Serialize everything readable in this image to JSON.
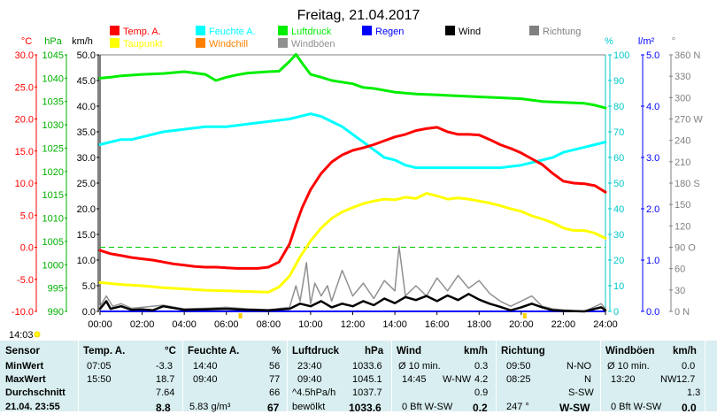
{
  "chart_data": {
    "type": "line",
    "title": "Freitag, 21.04.2017",
    "time_labels": [
      "00:00",
      "02:00",
      "04:00",
      "06:00",
      "08:00",
      "10:00",
      "12:00",
      "14:00",
      "16:00",
      "18:00",
      "20:00",
      "22:00",
      "24:00"
    ],
    "axes": {
      "temp": {
        "unit": "°C",
        "ticks": [
          "30.0",
          "25.0",
          "20.0",
          "15.0",
          "10.0",
          "5.0",
          "0.0",
          "-5.0",
          "-10.0"
        ],
        "range": [
          -10,
          30
        ]
      },
      "pressure": {
        "unit": "hPa",
        "ticks": [
          "1045",
          "1040",
          "1035",
          "1030",
          "1025",
          "1020",
          "1015",
          "1010",
          "1005",
          "1000",
          "995",
          "990"
        ],
        "range": [
          990,
          1045
        ]
      },
      "wind": {
        "unit": "km/h",
        "ticks": [
          "50.0",
          "45.0",
          "40.0",
          "35.0",
          "30.0",
          "25.0",
          "20.0",
          "15.0",
          "10.0",
          "5.0",
          "0.0"
        ],
        "range": [
          0,
          50
        ]
      },
      "humidity": {
        "unit": "%",
        "ticks": [
          "100",
          "90",
          "80",
          "70",
          "60",
          "50",
          "40",
          "30",
          "20",
          "10",
          "0"
        ],
        "range": [
          0,
          100
        ]
      },
      "rain": {
        "unit": "l/m²",
        "ticks": [
          "5.0",
          "4.0",
          "3.0",
          "2.0",
          "1.0",
          "0.0"
        ],
        "range": [
          0,
          5
        ]
      },
      "direction": {
        "unit": "°",
        "ticks": [
          "360 N",
          "330",
          "300",
          "270 W",
          "240",
          "210",
          "180 S",
          "150",
          "120",
          "90 O",
          "60",
          "30",
          "0 N"
        ],
        "range": [
          0,
          360
        ]
      }
    },
    "legend": [
      {
        "name": "Temp. A.",
        "color": "#ff0000"
      },
      {
        "name": "Feuchte A.",
        "color": "#00ffff"
      },
      {
        "name": "Luftdruck",
        "color": "#00ee00"
      },
      {
        "name": "Regen",
        "color": "#0000ff"
      },
      {
        "name": "Wind",
        "color": "#000000"
      },
      {
        "name": "Richtung",
        "color": "#808080"
      },
      {
        "name": "Taupunkt",
        "color": "#ffff00"
      },
      {
        "name": "Windchill",
        "color": "#ff8000"
      },
      {
        "name": "Windböen",
        "color": "#909090"
      }
    ],
    "series": [
      {
        "name": "Temp. A.",
        "axis": "temp",
        "color": "#ff0000",
        "x": [
          0,
          0.5,
          1,
          1.5,
          2,
          2.5,
          3,
          3.5,
          4,
          4.5,
          5,
          5.5,
          6,
          6.5,
          7,
          7.5,
          8,
          8.5,
          9,
          9.3,
          9.6,
          10,
          10.5,
          11,
          11.5,
          12,
          12.5,
          13,
          13.5,
          14,
          14.5,
          15,
          15.5,
          16,
          16.5,
          17,
          17.5,
          18,
          18.5,
          19,
          19.5,
          20,
          20.5,
          21,
          21.5,
          22,
          22.5,
          23,
          23.5,
          24
        ],
        "y": [
          -0.5,
          -1.0,
          -1.3,
          -1.6,
          -1.8,
          -2.0,
          -2.3,
          -2.6,
          -2.8,
          -3.0,
          -3.1,
          -3.1,
          -3.2,
          -3.3,
          -3.3,
          -3.3,
          -3.1,
          -2.3,
          0.5,
          3.5,
          6.2,
          9.0,
          11.5,
          13.3,
          14.4,
          15.1,
          15.5,
          16.0,
          16.6,
          17.2,
          17.6,
          18.2,
          18.5,
          18.7,
          18.0,
          17.6,
          17.6,
          17.5,
          16.8,
          16.0,
          15.4,
          14.7,
          13.8,
          12.9,
          11.5,
          10.3,
          10.0,
          9.9,
          9.6,
          8.6
        ]
      },
      {
        "name": "Feuchte A.",
        "axis": "humidity",
        "color": "#00ffff",
        "x": [
          0,
          0.5,
          1,
          1.5,
          2,
          3,
          4,
          5,
          6,
          7,
          8,
          9,
          9.5,
          10,
          10.5,
          11,
          11.5,
          12,
          12.5,
          13,
          13.5,
          14,
          14.5,
          15,
          15.5,
          16,
          17,
          18,
          19,
          20,
          20.5,
          21,
          21.5,
          22,
          22.5,
          23,
          23.5,
          24
        ],
        "y": [
          65,
          66,
          67,
          67,
          68,
          70,
          71,
          72,
          72,
          73,
          74,
          75,
          76,
          77,
          76,
          74,
          72,
          69,
          66,
          63,
          60,
          59,
          57,
          56,
          56,
          56,
          56,
          56,
          56,
          57,
          58,
          59,
          60,
          62,
          63,
          64,
          65,
          66
        ]
      },
      {
        "name": "Luftdruck",
        "axis": "pressure",
        "color": "#00ee00",
        "x": [
          0,
          0.5,
          1,
          2,
          3,
          4,
          5,
          5.5,
          6,
          6.5,
          7,
          8,
          8.5,
          9,
          9.3,
          9.6,
          10,
          10.5,
          11,
          12,
          12.5,
          13,
          14,
          15,
          16,
          17,
          18,
          19,
          20,
          21,
          22,
          23,
          23.5,
          24
        ],
        "y": [
          1040.0,
          1040.2,
          1040.5,
          1040.8,
          1041.0,
          1041.4,
          1040.8,
          1039.5,
          1040.2,
          1040.7,
          1041.1,
          1041.4,
          1041.5,
          1043.6,
          1045.1,
          1043.2,
          1040.8,
          1040.2,
          1039.5,
          1038.8,
          1038.0,
          1037.8,
          1037.0,
          1036.6,
          1036.4,
          1036.2,
          1036.0,
          1035.8,
          1035.6,
          1035.0,
          1034.8,
          1034.6,
          1034.2,
          1033.6
        ]
      },
      {
        "name": "Taupunkt",
        "axis": "temp",
        "color": "#ffff00",
        "x": [
          0,
          1,
          2,
          3,
          4,
          5,
          6,
          7,
          8,
          8.5,
          9,
          9.5,
          10,
          10.5,
          11,
          11.5,
          12,
          12.5,
          13,
          13.5,
          14,
          14.5,
          15,
          15.5,
          16,
          16.5,
          17,
          17.5,
          18,
          18.5,
          19,
          19.5,
          20,
          20.5,
          21,
          21.5,
          22,
          22.5,
          23,
          23.5,
          24
        ],
        "y": [
          -5.5,
          -5.8,
          -6.0,
          -6.3,
          -6.5,
          -6.7,
          -6.8,
          -6.9,
          -7.0,
          -6.2,
          -4.5,
          -1.5,
          1.0,
          3.0,
          4.5,
          5.5,
          6.2,
          6.8,
          7.2,
          7.5,
          7.4,
          7.8,
          7.6,
          8.4,
          8.0,
          7.5,
          7.7,
          7.5,
          7.2,
          6.9,
          6.5,
          6.0,
          5.6,
          4.9,
          4.4,
          3.8,
          3.0,
          2.6,
          2.6,
          2.2,
          1.4
        ]
      },
      {
        "name": "Wind",
        "axis": "wind",
        "color": "#000000",
        "x": [
          0,
          0.3,
          0.5,
          1,
          1.5,
          2,
          2.5,
          3,
          4,
          5,
          6,
          7,
          8,
          9,
          9.5,
          10,
          10.5,
          11,
          11.5,
          12,
          12.5,
          13,
          13.5,
          14,
          14.5,
          15,
          15.5,
          16,
          16.5,
          17,
          17.5,
          18,
          18.5,
          19,
          19.5,
          20,
          20.5,
          21,
          21.5,
          22,
          23,
          23.8,
          24
        ],
        "y": [
          0.5,
          2.0,
          0.5,
          1.0,
          0.3,
          0.4,
          0.2,
          1.0,
          0.3,
          0.4,
          0.5,
          0.3,
          0.2,
          0.5,
          1.5,
          1.0,
          2.0,
          0.8,
          1.5,
          1.0,
          2.0,
          1.2,
          2.5,
          1.6,
          2.8,
          2.2,
          3.0,
          2.0,
          3.1,
          2.2,
          3.4,
          2.3,
          1.5,
          0.9,
          0.2,
          0.8,
          1.5,
          0.8,
          0.2,
          0.1,
          0.0,
          0.8,
          0.2
        ]
      },
      {
        "name": "Windböen",
        "axis": "wind",
        "color": "#909090",
        "x": [
          0,
          0.3,
          0.6,
          1,
          1.5,
          2,
          3,
          4,
          5,
          6,
          7,
          8,
          9,
          9.3,
          9.5,
          9.8,
          10,
          10.2,
          10.5,
          10.8,
          11,
          11.5,
          12,
          12.5,
          13,
          13.5,
          14,
          14.2,
          14.5,
          15,
          15.5,
          16,
          16.5,
          17,
          17.5,
          18,
          18.5,
          19,
          19.5,
          20,
          20.5,
          21,
          21.5,
          22,
          23,
          23.8,
          24
        ],
        "y": [
          1.0,
          3.0,
          1.0,
          1.5,
          0.6,
          0.8,
          1.2,
          0.5,
          0.6,
          0.8,
          0.5,
          0.3,
          0.8,
          5.0,
          2.0,
          9.5,
          1.5,
          5.5,
          3.0,
          5.0,
          2.0,
          8.0,
          3.0,
          5.5,
          2.5,
          6.0,
          4.0,
          12.7,
          3.0,
          5.0,
          3.0,
          6.5,
          4.0,
          7.0,
          4.5,
          6.0,
          3.5,
          2.0,
          1.0,
          2.0,
          3.0,
          1.0,
          0.5,
          0.3,
          0.0,
          1.5,
          0.5
        ]
      }
    ],
    "reference_lines": [
      {
        "axis": "temp",
        "value": 0,
        "color": "#00cc00"
      }
    ],
    "markers": [
      "06:40",
      "20:10"
    ]
  },
  "time_current": "14:03",
  "table": {
    "headers": {
      "sensor": "Sensor",
      "temp": "Temp. A.",
      "temp_unit": "°C",
      "humidity": "Feuchte A.",
      "humidity_unit": "%",
      "pressure": "Luftdruck",
      "pressure_unit": "hPa",
      "wind": "Wind",
      "wind_unit": "km/h",
      "direction": "Richtung",
      "gusts": "Windböen",
      "gusts_unit": "km/h"
    },
    "rows": [
      {
        "label": "MinWert",
        "temp_time": "07:05",
        "temp_val": "-3.3",
        "hum_time": "14:40",
        "hum_val": "56",
        "pres_time": "23:40",
        "pres_val": "1033.6",
        "wind_time": "Ø 10 min.",
        "wind_val": "0.3",
        "dir_time": "09:50",
        "dir_val": "N-NO",
        "gust_time": "Ø 10 min.",
        "gust_val": "0.0"
      },
      {
        "label": "MaxWert",
        "temp_time": "15:50",
        "temp_val": "18.7",
        "hum_time": "09:40",
        "hum_val": "77",
        "pres_time": "09:40",
        "pres_val": "1045.1",
        "wind_time": "14:45",
        "wind_extra": "W-NW",
        "wind_val": "4.2",
        "dir_time": "08:25",
        "dir_val": "N",
        "gust_time": "13:20",
        "gust_extra": "NW",
        "gust_val": "12.7"
      },
      {
        "label": "Durchschnitt",
        "temp_val": "7.64",
        "hum_val": "66",
        "pres_time": "^4.5hPa/h",
        "pres_val": "1037.7",
        "wind_val": "0.9",
        "dir_val": "S-SW",
        "gust_val": "1.3"
      },
      {
        "label": "21.04. 23:55",
        "temp_val": "8.8",
        "hum_time": "5.83 g/m³",
        "hum_val": "67",
        "pres_time": "bewölkt",
        "pres_val": "1033.6",
        "wind_time": "0 Bft W-SW",
        "wind_val": "0.2",
        "dir_time": "247 °",
        "dir_val": "W-SW",
        "gust_time": "0 Bft W-SW",
        "gust_val": "0.0"
      }
    ]
  }
}
